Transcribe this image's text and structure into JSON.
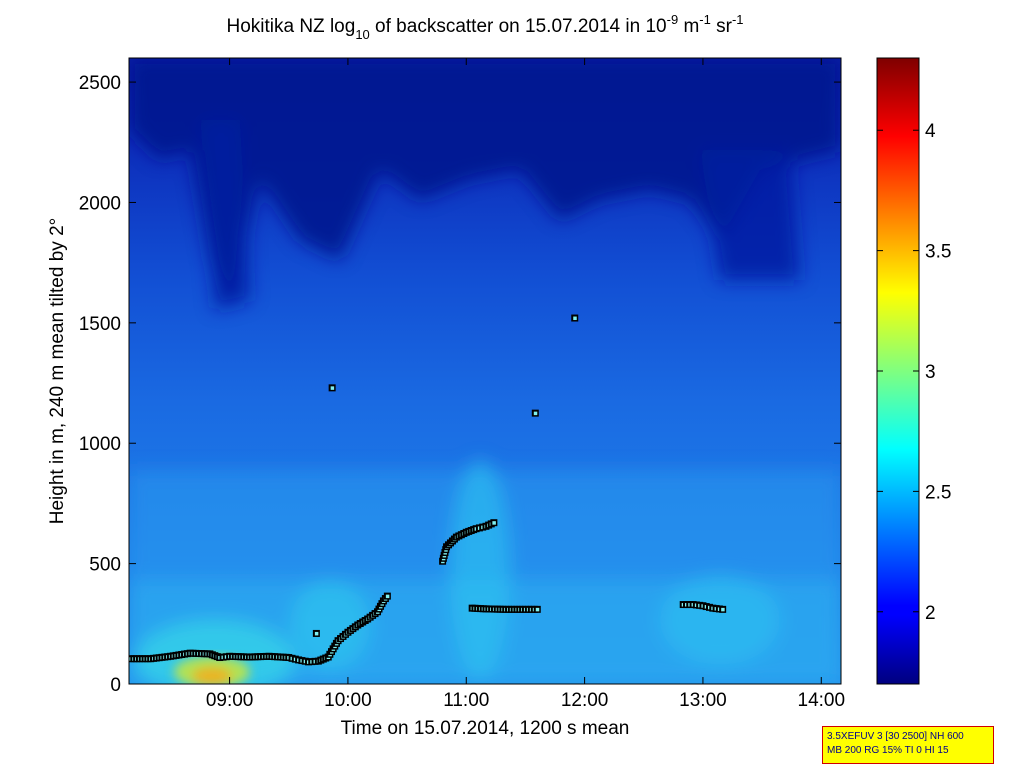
{
  "chart_data": {
    "type": "heatmap",
    "title": {
      "pre": "Hokitika NZ log",
      "sub": "10",
      "mid": " of backscatter on 15.07.2014 in 10",
      "sup1": "-9",
      "mid2": " m",
      "sup2": "-1",
      "mid3": " sr",
      "sup3": "-1"
    },
    "xlabel": "Time on 15.07.2014, 1200 s mean",
    "ylabel": "Height in m, 240 m mean tilted by 2°",
    "xlim": [
      "08:09",
      "14:10"
    ],
    "ylim": [
      0,
      2600
    ],
    "xticks": [
      {
        "t": "09:00",
        "label": "09:00"
      },
      {
        "t": "10:00",
        "label": "10:00"
      },
      {
        "t": "11:00",
        "label": "11:00"
      },
      {
        "t": "12:00",
        "label": "12:00"
      },
      {
        "t": "13:00",
        "label": "13:00"
      },
      {
        "t": "14:00",
        "label": "14:00"
      }
    ],
    "yticks": [
      0,
      500,
      1000,
      1500,
      2000,
      2500
    ],
    "colorbar": {
      "min": 1.7,
      "max": 4.3,
      "ticks": [
        2,
        2.5,
        3,
        3.5,
        4
      ],
      "colormap": "jet"
    },
    "cloud_base_markers": [
      {
        "segment": "morning",
        "points": [
          [
            "08:10",
            105
          ],
          [
            "08:20",
            105
          ],
          [
            "08:30",
            115
          ],
          [
            "08:40",
            128
          ],
          [
            "08:50",
            125
          ],
          [
            "08:55",
            110
          ],
          [
            "09:00",
            115
          ],
          [
            "09:10",
            112
          ],
          [
            "09:20",
            115
          ],
          [
            "09:30",
            110
          ],
          [
            "09:35",
            100
          ],
          [
            "09:40",
            92
          ],
          [
            "09:45",
            95
          ],
          [
            "09:50",
            112
          ],
          [
            "09:55",
            180
          ],
          [
            "10:00",
            215
          ],
          [
            "10:05",
            245
          ],
          [
            "10:10",
            270
          ],
          [
            "10:15",
            300
          ],
          [
            "10:18",
            345
          ],
          [
            "10:20",
            365
          ]
        ]
      },
      {
        "segment": "noon",
        "points": [
          [
            "10:48",
            510
          ],
          [
            "10:50",
            570
          ],
          [
            "10:55",
            610
          ],
          [
            "11:00",
            630
          ],
          [
            "11:05",
            645
          ],
          [
            "11:10",
            655
          ],
          [
            "11:14",
            670
          ]
        ]
      },
      {
        "segment": "noon-low",
        "points": [
          [
            "11:03",
            315
          ],
          [
            "11:10",
            312
          ],
          [
            "11:20",
            310
          ],
          [
            "11:30",
            310
          ],
          [
            "11:36",
            310
          ]
        ]
      },
      {
        "segment": "afternoon",
        "points": [
          [
            "12:50",
            330
          ],
          [
            "12:55",
            330
          ],
          [
            "13:00",
            325
          ],
          [
            "13:05",
            315
          ],
          [
            "13:10",
            310
          ]
        ]
      },
      {
        "segment": "isolated",
        "points": [
          [
            "09:44",
            210
          ],
          [
            "09:52",
            1230
          ],
          [
            "11:35",
            1125
          ],
          [
            "11:55",
            1520
          ]
        ]
      }
    ]
  },
  "infobox": {
    "line1": "3.5XEFUV 3 [30 2500] NH 600",
    "line2": "MB 200 RG 15% TI 0 HI 15"
  }
}
